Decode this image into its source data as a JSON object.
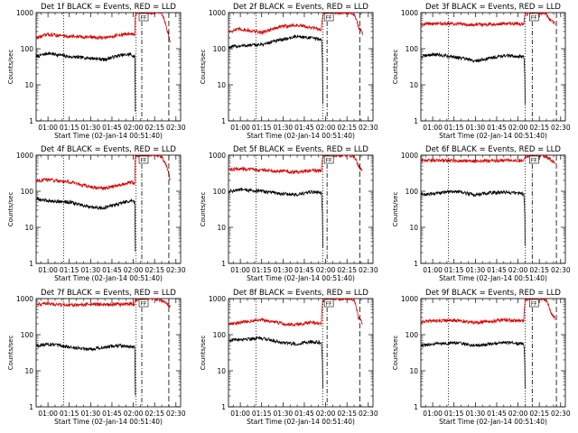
{
  "figure": {
    "ylabel": "Counts/sec",
    "xlabel": "Start Time (02-Jan-14 00:51:40)",
    "x_ticks": [
      "01:00",
      "01:15",
      "01:30",
      "01:45",
      "02:00",
      "02:15",
      "02:30"
    ],
    "x_tick_minutes": [
      60,
      75,
      90,
      105,
      120,
      135,
      150
    ],
    "y_ticks": [
      "1",
      "10",
      "100",
      "1000"
    ],
    "flag_text": "FF",
    "series_colors": {
      "events": "#000000",
      "lld": "#dd0000"
    }
  },
  "chart_data": [
    {
      "type": "line",
      "title": "Det 1f BLACK = Events, RED = LLD",
      "xlim_min": [
        51.67,
        153.3
      ],
      "ylim": [
        1,
        1000
      ],
      "yscale": "log",
      "series": [
        {
          "name": "Events",
          "color": "#000000",
          "x_min": [
            52,
            60,
            75,
            90,
            100,
            110,
            118,
            121,
            121.5
          ],
          "values": [
            60,
            75,
            60,
            55,
            50,
            65,
            70,
            60,
            2
          ]
        },
        {
          "name": "LLD",
          "color": "#dd0000",
          "x_min": [
            52,
            60,
            75,
            90,
            100,
            110,
            118,
            121,
            121.5,
            124,
            126,
            128,
            130,
            132,
            138,
            140,
            144,
            146
          ],
          "values": [
            200,
            250,
            220,
            210,
            200,
            240,
            260,
            240,
            900,
            1000,
            1000,
            1000,
            1000,
            1000,
            1000,
            900,
            300,
            150
          ]
        }
      ],
      "vlines_min": [
        {
          "x": 71,
          "style": "dotted"
        },
        {
          "x": 122,
          "style": "dotted"
        },
        {
          "x": 126,
          "style": "dashdot"
        },
        {
          "x": 145,
          "style": "dashed"
        }
      ]
    },
    {
      "type": "line",
      "title": "Det 2f BLACK = Events, RED = LLD",
      "xlim_min": [
        51.67,
        153.3
      ],
      "ylim": [
        1,
        1000
      ],
      "yscale": "log",
      "series": [
        {
          "name": "Events",
          "color": "#000000",
          "x_min": [
            52,
            60,
            75,
            90,
            100,
            110,
            117,
            118
          ],
          "values": [
            110,
            120,
            130,
            180,
            220,
            200,
            180,
            3
          ]
        },
        {
          "name": "LLD",
          "color": "#dd0000",
          "x_min": [
            52,
            60,
            75,
            90,
            100,
            110,
            117,
            118,
            124,
            128,
            130,
            132,
            138,
            140,
            143,
            146
          ],
          "values": [
            300,
            350,
            280,
            420,
            450,
            380,
            340,
            900,
            1000,
            1000,
            1000,
            1000,
            1000,
            900,
            400,
            250
          ]
        }
      ],
      "vlines_min": [
        {
          "x": 71,
          "style": "dotted"
        },
        {
          "x": 118,
          "style": "dotted"
        },
        {
          "x": 121,
          "style": "dashdot"
        },
        {
          "x": 144,
          "style": "dashed"
        }
      ]
    },
    {
      "type": "line",
      "title": "Det 3f BLACK = Events, RED = LLD",
      "xlim_min": [
        51.67,
        153.3
      ],
      "ylim": [
        1,
        1000
      ],
      "yscale": "log",
      "series": [
        {
          "name": "Events",
          "color": "#000000",
          "x_min": [
            52,
            60,
            75,
            90,
            100,
            110,
            124,
            125
          ],
          "values": [
            60,
            70,
            60,
            45,
            55,
            65,
            60,
            3
          ]
        },
        {
          "name": "LLD",
          "color": "#dd0000",
          "x_min": [
            52,
            60,
            75,
            90,
            100,
            110,
            124,
            125,
            130,
            136,
            140,
            143,
            146
          ],
          "values": [
            480,
            500,
            490,
            470,
            480,
            500,
            490,
            900,
            1000,
            1000,
            900,
            600,
            500
          ]
        }
      ],
      "vlines_min": [
        {
          "x": 71,
          "style": "dotted"
        },
        {
          "x": 125,
          "style": "dotted"
        },
        {
          "x": 130,
          "style": "dashdot"
        },
        {
          "x": 147,
          "style": "dashed"
        }
      ]
    },
    {
      "type": "line",
      "title": "Det 4f BLACK = Events, RED = LLD",
      "xlim_min": [
        51.67,
        153.3
      ],
      "ylim": [
        1,
        1000
      ],
      "yscale": "log",
      "series": [
        {
          "name": "Events",
          "color": "#000000",
          "x_min": [
            52,
            60,
            75,
            90,
            100,
            110,
            118,
            121,
            121.5
          ],
          "values": [
            60,
            55,
            50,
            35,
            35,
            45,
            55,
            50,
            2
          ]
        },
        {
          "name": "LLD",
          "color": "#dd0000",
          "x_min": [
            52,
            60,
            75,
            90,
            100,
            110,
            118,
            121,
            121.5,
            124,
            128,
            134,
            140,
            144,
            146
          ],
          "values": [
            200,
            210,
            180,
            130,
            120,
            150,
            180,
            170,
            900,
            1000,
            1000,
            1000,
            900,
            400,
            200
          ]
        }
      ],
      "vlines_min": [
        {
          "x": 71,
          "style": "dotted"
        },
        {
          "x": 122,
          "style": "dotted"
        },
        {
          "x": 126,
          "style": "dashdot"
        },
        {
          "x": 145,
          "style": "dashed"
        }
      ]
    },
    {
      "type": "line",
      "title": "Det 5f BLACK = Events, RED = LLD",
      "xlim_min": [
        51.67,
        153.3
      ],
      "ylim": [
        1,
        1000
      ],
      "yscale": "log",
      "series": [
        {
          "name": "Events",
          "color": "#000000",
          "x_min": [
            52,
            60,
            75,
            90,
            100,
            110,
            117,
            118
          ],
          "values": [
            100,
            110,
            100,
            85,
            80,
            95,
            90,
            3
          ]
        },
        {
          "name": "LLD",
          "color": "#dd0000",
          "x_min": [
            52,
            60,
            75,
            90,
            100,
            110,
            117,
            118,
            124,
            130,
            136,
            140,
            143,
            146
          ],
          "values": [
            400,
            420,
            390,
            360,
            340,
            380,
            360,
            900,
            1000,
            1000,
            1000,
            900,
            500,
            350
          ]
        }
      ],
      "vlines_min": [
        {
          "x": 71,
          "style": "dotted"
        },
        {
          "x": 118,
          "style": "dotted"
        },
        {
          "x": 121,
          "style": "dashdot"
        },
        {
          "x": 144,
          "style": "dashed"
        }
      ]
    },
    {
      "type": "line",
      "title": "Det 6f BLACK = Events, RED = LLD",
      "xlim_min": [
        51.67,
        153.3
      ],
      "ylim": [
        1,
        1000
      ],
      "yscale": "log",
      "series": [
        {
          "name": "Events",
          "color": "#000000",
          "x_min": [
            52,
            60,
            75,
            90,
            100,
            110,
            124,
            125
          ],
          "values": [
            80,
            85,
            100,
            80,
            90,
            95,
            85,
            3
          ]
        },
        {
          "name": "LLD",
          "color": "#dd0000",
          "x_min": [
            52,
            60,
            75,
            90,
            100,
            110,
            124,
            125,
            130,
            136,
            140,
            143,
            146
          ],
          "values": [
            700,
            720,
            700,
            690,
            700,
            720,
            700,
            900,
            1000,
            1000,
            900,
            750,
            600
          ]
        }
      ],
      "vlines_min": [
        {
          "x": 71,
          "style": "dotted"
        },
        {
          "x": 125,
          "style": "dotted"
        },
        {
          "x": 130,
          "style": "dashdot"
        },
        {
          "x": 147,
          "style": "dashed"
        }
      ]
    },
    {
      "type": "line",
      "title": "Det 7f BLACK = Events, RED = LLD",
      "xlim_min": [
        51.67,
        153.3
      ],
      "ylim": [
        1,
        1000
      ],
      "yscale": "log",
      "series": [
        {
          "name": "Events",
          "color": "#000000",
          "x_min": [
            52,
            60,
            75,
            90,
            100,
            110,
            118,
            121,
            121.5
          ],
          "values": [
            50,
            55,
            45,
            40,
            45,
            50,
            45,
            45,
            2
          ]
        },
        {
          "name": "LLD",
          "color": "#dd0000",
          "x_min": [
            52,
            60,
            75,
            90,
            100,
            110,
            118,
            121,
            121.5,
            124,
            128,
            134,
            140,
            144,
            146
          ],
          "values": [
            700,
            720,
            650,
            700,
            680,
            700,
            720,
            700,
            900,
            1000,
            1000,
            1000,
            900,
            700,
            600
          ]
        }
      ],
      "vlines_min": [
        {
          "x": 71,
          "style": "dotted"
        },
        {
          "x": 122,
          "style": "dotted"
        },
        {
          "x": 126,
          "style": "dashdot"
        },
        {
          "x": 145,
          "style": "dashed"
        }
      ]
    },
    {
      "type": "line",
      "title": "Det 8f BLACK = Events, RED = LLD",
      "xlim_min": [
        51.67,
        153.3
      ],
      "ylim": [
        1,
        1000
      ],
      "yscale": "log",
      "series": [
        {
          "name": "Events",
          "color": "#000000",
          "x_min": [
            52,
            60,
            75,
            90,
            100,
            110,
            117,
            118
          ],
          "values": [
            70,
            75,
            80,
            60,
            55,
            65,
            60,
            3
          ]
        },
        {
          "name": "LLD",
          "color": "#dd0000",
          "x_min": [
            52,
            60,
            75,
            90,
            100,
            110,
            117,
            118,
            124,
            130,
            136,
            140,
            143,
            146
          ],
          "values": [
            200,
            220,
            260,
            200,
            190,
            220,
            200,
            900,
            1000,
            1000,
            1000,
            900,
            300,
            200
          ]
        }
      ],
      "vlines_min": [
        {
          "x": 71,
          "style": "dotted"
        },
        {
          "x": 118,
          "style": "dotted"
        },
        {
          "x": 121,
          "style": "dashdot"
        },
        {
          "x": 144,
          "style": "dashed"
        }
      ]
    },
    {
      "type": "line",
      "title": "Det 9f BLACK = Events, RED = LLD",
      "xlim_min": [
        51.67,
        153.3
      ],
      "ylim": [
        1,
        1000
      ],
      "yscale": "log",
      "series": [
        {
          "name": "Events",
          "color": "#000000",
          "x_min": [
            52,
            60,
            75,
            90,
            100,
            110,
            124,
            125
          ],
          "values": [
            50,
            55,
            60,
            50,
            55,
            60,
            55,
            3
          ]
        },
        {
          "name": "LLD",
          "color": "#dd0000",
          "x_min": [
            52,
            60,
            75,
            90,
            100,
            110,
            124,
            125,
            130,
            136,
            140,
            143,
            146
          ],
          "values": [
            230,
            240,
            250,
            220,
            230,
            260,
            240,
            900,
            1000,
            1000,
            900,
            400,
            280
          ]
        }
      ],
      "vlines_min": [
        {
          "x": 71,
          "style": "dotted"
        },
        {
          "x": 125,
          "style": "dotted"
        },
        {
          "x": 130,
          "style": "dashdot"
        },
        {
          "x": 147,
          "style": "dashed"
        }
      ]
    }
  ]
}
